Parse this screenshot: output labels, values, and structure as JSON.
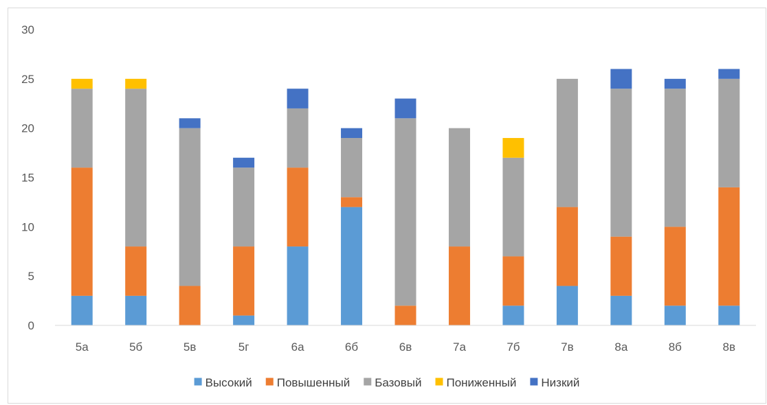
{
  "chart_data": {
    "type": "bar",
    "stacked": true,
    "title": "",
    "xlabel": "",
    "ylabel": "",
    "ylim": [
      0,
      30
    ],
    "yticks": [
      0,
      5,
      10,
      15,
      20,
      25,
      30
    ],
    "grid": false,
    "legend_position": "bottom",
    "categories": [
      "5а",
      "5б",
      "5в",
      "5г",
      "6а",
      "6б",
      "6в",
      "7а",
      "7б",
      "7в",
      "8а",
      "8б",
      "8в"
    ],
    "series": [
      {
        "name": "Высокий",
        "color": "#5b9bd5",
        "values": [
          3,
          3,
          0,
          1,
          8,
          12,
          0,
          0,
          2,
          4,
          3,
          2,
          2
        ]
      },
      {
        "name": "Повышенный",
        "color": "#ed7d31",
        "values": [
          13,
          5,
          4,
          7,
          8,
          1,
          2,
          8,
          5,
          8,
          6,
          8,
          12
        ]
      },
      {
        "name": "Базовый",
        "color": "#a5a5a5",
        "values": [
          8,
          16,
          16,
          8,
          6,
          6,
          19,
          12,
          10,
          13,
          15,
          14,
          11
        ]
      },
      {
        "name": "Пониженный",
        "color": "#ffc000",
        "values": [
          1,
          1,
          0,
          0,
          0,
          0,
          0,
          0,
          2,
          0,
          0,
          0,
          0
        ]
      },
      {
        "name": "Низкий",
        "color": "#4472c4",
        "values": [
          0,
          0,
          1,
          1,
          2,
          1,
          2,
          0,
          0,
          0,
          2,
          1,
          1
        ]
      }
    ]
  }
}
